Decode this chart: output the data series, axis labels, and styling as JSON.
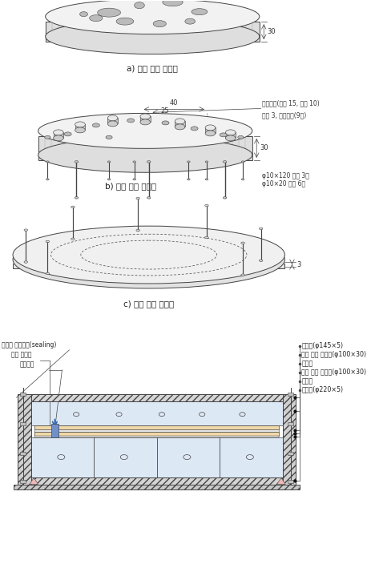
{
  "bg_color": "#ffffff",
  "lc": "#444444",
  "label_a": "a) 상부 투수 시험편",
  "label_b": "b) 하부 투수 시험편",
  "label_c": "c) 투수 시험 보조판",
  "ann_b": [
    "스페이서(직경 15, 높이 10)",
    "직경 3, 관통구멍(9개)",
    "φ10×120 볼트 3개",
    "φ10×20 볼트 6개"
  ],
  "ann_d_right": [
    "누름판(φ145×5)",
    "상부 투수 시험편(φ100×30)",
    "실링재",
    "하부 투수 시험편(φ100×30)",
    "부직포",
    "지지판(φ220×5)"
  ],
  "ann_d_left1": "실란트 방수처리(sealing)",
  "ann_d_left2": "투명 테이프",
  "ann_d_left3": "스페이서",
  "dim_30a": "30",
  "dim_40": "40",
  "dim_25": "25",
  "dim_30b": "30",
  "dim_3": "3"
}
